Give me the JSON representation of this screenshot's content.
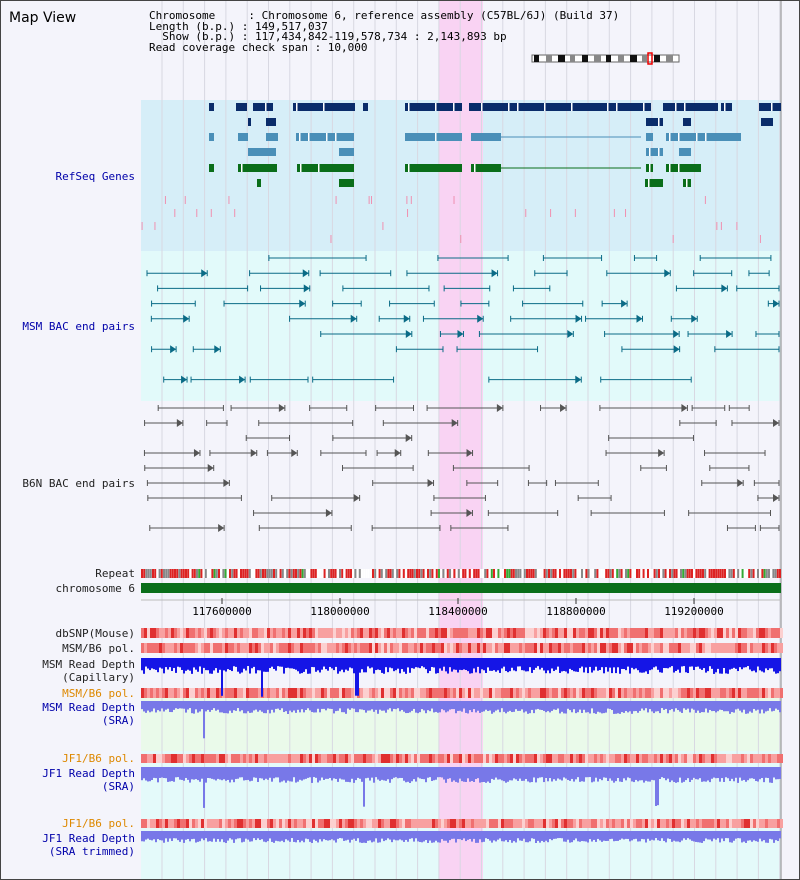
{
  "title": "Map View",
  "info": {
    "chromosome_line": "Chromosome     : Chromosome 6, reference assembly (C57BL/6J) (Build 37)",
    "length_line": "Length (b.p.) : 149,517,037",
    "show_line": "  Show (b.p.) : 117,434,842-119,578,734 : 2,143,893 bp",
    "coverage_line": "Read coverage check span : 10,000"
  },
  "tracks": {
    "refseq": "RefSeq Genes",
    "msm_bac": "MSM BAC end pairs",
    "b6n_bac": "B6N BAC end pairs",
    "repeat": "Repeat",
    "chromosome": "chromosome 6",
    "dbsnp": "dbSNP(Mouse)",
    "msm_pol1": "MSM/B6 pol.",
    "msm_depth_cap_1": "MSM Read Depth",
    "msm_depth_cap_2": "(Capillary)",
    "msm_pol2": "MSM/B6 pol.",
    "msm_depth_sra_1": "MSM Read Depth",
    "msm_depth_sra_2": "(SRA)",
    "jf1_pol1": "JF1/B6 pol.",
    "jf1_depth_sra_1": "JF1 Read Depth",
    "jf1_depth_sra_2": "(SRA)",
    "jf1_pol2": "JF1/B6 pol.",
    "jf1_depth_trim_1": "JF1 Read Depth",
    "jf1_depth_trim_2": "(SRA trimmed)"
  },
  "axis": {
    "ticks": [
      "117600000",
      "118000000",
      "118400000",
      "118800000",
      "119200000"
    ]
  },
  "colors": {
    "highlight": "#f9d3f3",
    "refseq_bg": "#d6eef8",
    "msm_bg": "#e2fafa",
    "gene_dark": "#0a2c6a",
    "gene_mid": "#4a8fb8",
    "gene_green": "#0a6e1a",
    "bac_msm": "#0a6b86",
    "bac_b6n": "#555555",
    "chromosome_bar": "#0a6e1a",
    "depth_dark": "#1515e6",
    "depth_light": "#7878e8"
  }
}
